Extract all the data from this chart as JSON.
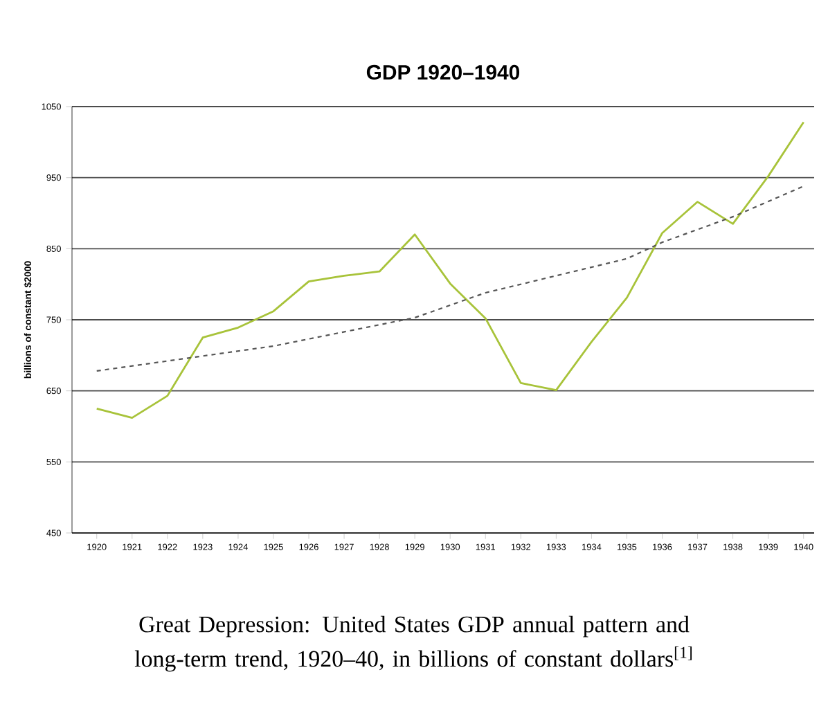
{
  "chart_data": {
    "type": "line",
    "title": "GDP 1920–1940",
    "ylabel": "billions of constant $2000",
    "xlim": [
      1919.3,
      1940.3
    ],
    "xticks": [
      1920,
      1921,
      1922,
      1923,
      1924,
      1925,
      1926,
      1927,
      1928,
      1929,
      1930,
      1931,
      1932,
      1933,
      1934,
      1935,
      1936,
      1937,
      1938,
      1939,
      1940
    ],
    "ylim": [
      450,
      1050
    ],
    "yticks": [
      450,
      550,
      650,
      750,
      850,
      950,
      1050
    ],
    "grid": "y",
    "marker": "none",
    "x": [
      1920,
      1921,
      1922,
      1923,
      1924,
      1925,
      1926,
      1927,
      1928,
      1929,
      1930,
      1931,
      1932,
      1933,
      1934,
      1935,
      1936,
      1937,
      1938,
      1939,
      1940
    ],
    "series": [
      {
        "color": "#a8c33a",
        "line_style": "solid",
        "values": [
          625,
          612,
          643,
          725,
          739,
          762,
          804,
          812,
          818,
          870,
          801,
          752,
          661,
          651,
          719,
          781,
          872,
          916,
          885,
          952,
          1028
        ]
      },
      {
        "type": "line",
        "color": "#555555",
        "line_style": "dashed",
        "x": [
          1920,
          1925,
          1929,
          1931,
          1935,
          1936,
          1938,
          1940
        ],
        "values": [
          678,
          713,
          753,
          788,
          836,
          859,
          895,
          938
        ]
      }
    ],
    "annotations": [
      "Great Depression: United States GDP annual pattern and long-term trend, 1920–40, in billions of constant dollars$^{[1]}$"
    ]
  }
}
